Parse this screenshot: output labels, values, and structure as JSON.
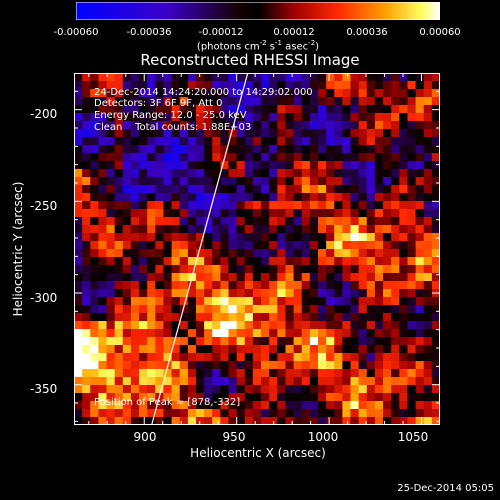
{
  "colorbar": {
    "ticks": [
      "-0.00060",
      "-0.00036",
      "-0.00012",
      "0.00012",
      "0.00036",
      "0.00060"
    ],
    "unit_prefix": "(photons cm",
    "unit_exp1": "-2",
    "unit_mid": " s",
    "unit_exp2": "-1",
    "unit_mid2": " asec",
    "unit_exp3": "-2",
    "unit_suffix": ")"
  },
  "chart_data": {
    "type": "heatmap",
    "title": "Reconstructed RHESSI Image",
    "xlabel": "Heliocentric X (arcsec)",
    "ylabel": "Heliocentric Y (arcsec)",
    "xlim": [
      862,
      1060
    ],
    "ylim": [
      -372,
      -180
    ],
    "xticks": [
      "900",
      "950",
      "1000",
      "1050"
    ],
    "yticks": [
      "-200",
      "-250",
      "-300",
      "-350"
    ],
    "zlim": [
      -0.0006,
      0.0006
    ],
    "colormap": "blue-black-red-yellow-white",
    "limb_line": [
      [
        904,
        -372
      ],
      [
        956,
        -180
      ]
    ],
    "peak": [
      878,
      -332
    ]
  },
  "info": {
    "time": "24-Dec-2014 14:24:20.000 to 14:29:02.000",
    "detectors": "Detectors: 3F 6F 9F, Att 0",
    "energy": "Energy Range: 12.0 - 25.0 keV",
    "method": "Clean    Total counts: 1.88E+03",
    "peak_text": "Position of Peak = [878,-332]"
  },
  "footer": "25-Dec-2014 05:05"
}
